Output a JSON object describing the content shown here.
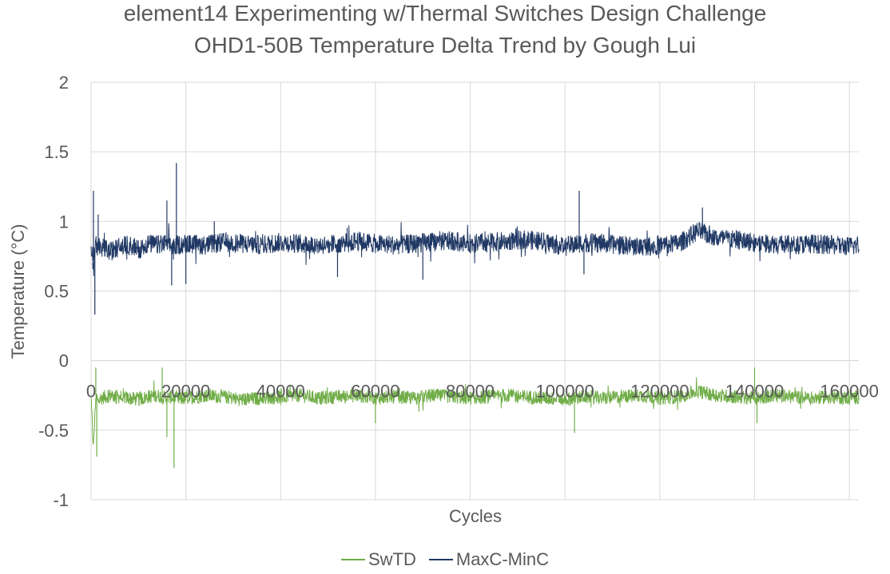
{
  "chart_data": {
    "type": "line",
    "title": "element14 Experimenting w/Thermal Switches Design Challenge",
    "subtitle": "OHD1-50B Temperature Delta Trend by Gough Lui",
    "xlabel": "Cycles",
    "ylabel": "Temperature (°C)",
    "xlim": [
      0,
      162000
    ],
    "ylim": [
      -1,
      2
    ],
    "x_ticks": [
      "0",
      "20000",
      "40000",
      "60000",
      "80000",
      "100000",
      "120000",
      "140000",
      "160000"
    ],
    "y_ticks": [
      "2",
      "1.5",
      "1",
      "0.5",
      "0",
      "-0.5",
      "-1"
    ],
    "grid": true,
    "legend": "bottom",
    "series": [
      {
        "name": "SwTD",
        "color": "#70ad47",
        "x": [
          0,
          500,
          1000,
          1500,
          2000,
          4000,
          6000,
          8000,
          10000,
          12000,
          14000,
          16000,
          17000,
          18000,
          20000,
          24000,
          28000,
          32000,
          36000,
          40000,
          44000,
          48000,
          52000,
          56000,
          60000,
          64000,
          68000,
          72000,
          76000,
          80000,
          84000,
          88000,
          92000,
          96000,
          100000,
          104000,
          108000,
          112000,
          116000,
          120000,
          124000,
          128000,
          132000,
          136000,
          140000,
          144000,
          148000,
          152000,
          156000,
          160000,
          162000
        ],
        "values": [
          -0.28,
          -0.62,
          -0.25,
          -0.3,
          -0.27,
          -0.25,
          -0.26,
          -0.27,
          -0.28,
          -0.26,
          -0.25,
          -0.27,
          -0.26,
          -0.28,
          -0.27,
          -0.25,
          -0.26,
          -0.28,
          -0.27,
          -0.26,
          -0.25,
          -0.27,
          -0.26,
          -0.25,
          -0.27,
          -0.26,
          -0.27,
          -0.25,
          -0.26,
          -0.27,
          -0.26,
          -0.25,
          -0.26,
          -0.27,
          -0.28,
          -0.26,
          -0.27,
          -0.26,
          -0.25,
          -0.27,
          -0.26,
          -0.22,
          -0.25,
          -0.26,
          -0.27,
          -0.25,
          -0.26,
          -0.27,
          -0.26,
          -0.27,
          -0.26
        ],
        "noise": 0.05,
        "spikes": [
          [
            1000,
            -0.05
          ],
          [
            1200,
            -0.69
          ],
          [
            15000,
            -0.05
          ],
          [
            17500,
            -0.77
          ],
          [
            16000,
            -0.55
          ],
          [
            42000,
            -0.18
          ],
          [
            60000,
            -0.45
          ],
          [
            102000,
            -0.52
          ],
          [
            140000,
            -0.05
          ],
          [
            140500,
            -0.45
          ]
        ]
      },
      {
        "name": "MaxC-MinC",
        "color": "#203864",
        "x": [
          0,
          500,
          1000,
          1500,
          2000,
          4000,
          6000,
          8000,
          10000,
          12000,
          14000,
          16000,
          17000,
          18000,
          20000,
          24000,
          28000,
          32000,
          36000,
          40000,
          44000,
          48000,
          52000,
          56000,
          60000,
          64000,
          68000,
          72000,
          76000,
          80000,
          84000,
          88000,
          92000,
          96000,
          100000,
          104000,
          108000,
          112000,
          116000,
          120000,
          124000,
          128000,
          132000,
          136000,
          140000,
          144000,
          148000,
          152000,
          156000,
          160000,
          162000
        ],
        "values": [
          0.82,
          0.72,
          0.85,
          0.8,
          0.83,
          0.78,
          0.82,
          0.83,
          0.8,
          0.84,
          0.83,
          0.84,
          0.82,
          0.83,
          0.84,
          0.83,
          0.85,
          0.84,
          0.83,
          0.85,
          0.84,
          0.83,
          0.84,
          0.86,
          0.84,
          0.83,
          0.84,
          0.85,
          0.86,
          0.84,
          0.85,
          0.86,
          0.87,
          0.85,
          0.82,
          0.85,
          0.84,
          0.83,
          0.82,
          0.83,
          0.84,
          0.93,
          0.88,
          0.87,
          0.85,
          0.84,
          0.83,
          0.84,
          0.83,
          0.82,
          0.83
        ],
        "noise": 0.07,
        "spikes": [
          [
            500,
            1.22
          ],
          [
            800,
            0.33
          ],
          [
            1500,
            1.05
          ],
          [
            16000,
            1.15
          ],
          [
            17000,
            0.54
          ],
          [
            18000,
            1.42
          ],
          [
            20000,
            0.55
          ],
          [
            26000,
            1.0
          ],
          [
            52000,
            0.6
          ],
          [
            70000,
            0.58
          ],
          [
            103000,
            1.22
          ],
          [
            104000,
            0.62
          ],
          [
            129000,
            1.1
          ]
        ]
      }
    ]
  }
}
